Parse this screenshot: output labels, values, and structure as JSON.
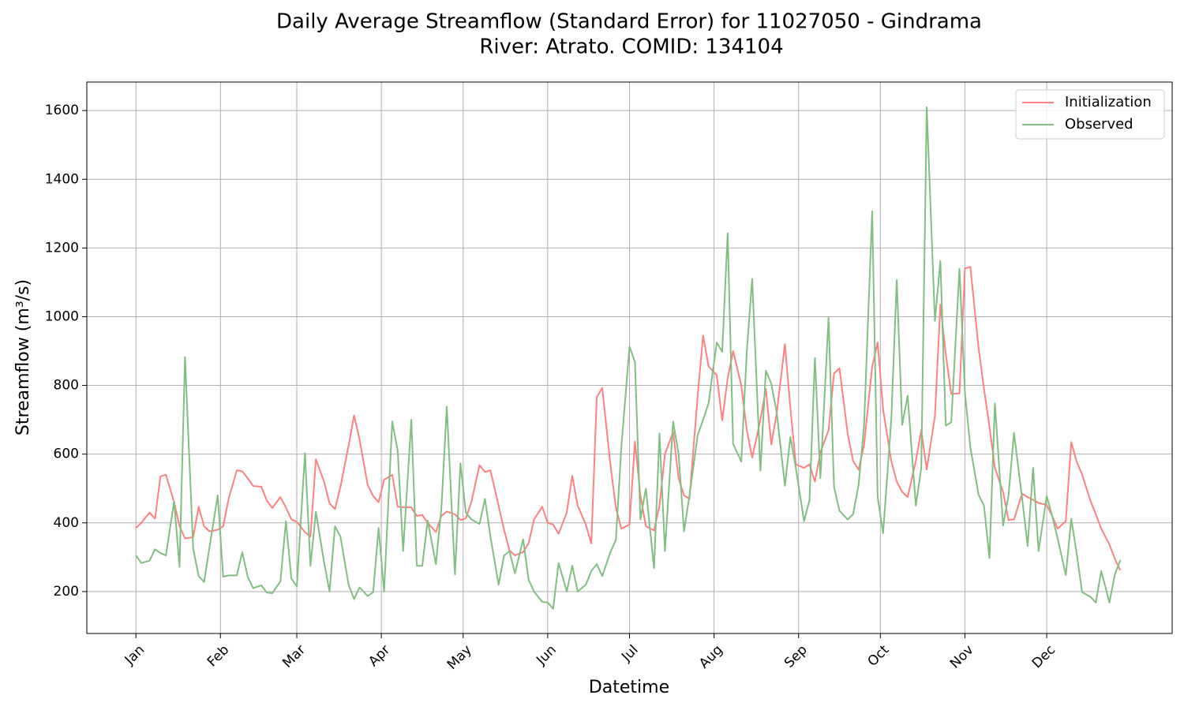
{
  "chart_data": {
    "type": "line",
    "title": [
      "Daily Average Streamflow (Standard Error) for 11027050 - Gindrama",
      "River: Atrato. COMID: 134104"
    ],
    "xlabel": "Datetime",
    "ylabel": "Streamflow (m³/s)",
    "x": [
      1,
      3,
      6,
      8,
      10,
      12,
      15,
      17,
      19,
      22,
      24,
      26,
      28,
      31,
      33,
      35,
      38,
      40,
      42,
      44,
      47,
      49,
      51,
      54,
      56,
      58,
      60,
      63,
      65,
      67,
      70,
      72,
      74,
      76,
      79,
      81,
      83,
      86,
      88,
      90,
      92,
      95,
      97,
      99,
      102,
      104,
      106,
      108,
      111,
      113,
      115,
      118,
      120,
      122,
      124,
      127,
      129,
      131,
      134,
      136,
      138,
      140,
      143,
      145,
      147,
      150,
      152,
      154,
      156,
      159,
      161,
      163,
      166,
      168,
      170,
      172,
      175,
      177,
      179,
      182,
      184,
      186,
      188,
      191,
      193,
      195,
      198,
      200,
      202,
      204,
      207,
      209,
      211,
      214,
      216,
      218,
      220,
      223,
      225,
      227,
      230,
      232,
      234,
      236,
      239,
      241,
      243,
      246,
      248,
      250,
      252,
      255,
      257,
      259,
      262,
      264,
      266,
      268,
      271,
      273,
      275,
      278,
      280,
      282,
      284,
      287,
      289,
      291,
      294,
      296,
      298,
      300,
      303,
      305,
      307,
      310,
      312,
      314,
      316,
      319,
      321,
      323,
      326,
      328,
      330,
      332,
      335,
      337,
      339,
      342,
      344,
      346,
      348,
      351,
      353,
      355,
      358,
      360,
      362
    ],
    "series": [
      {
        "name": "Initialization",
        "color": "#ff8080",
        "values": [
          385,
          400,
          430,
          412,
          535,
          540,
          460,
          390,
          355,
          358,
          447,
          390,
          375,
          380,
          390,
          470,
          553,
          550,
          530,
          507,
          505,
          465,
          443,
          475,
          445,
          410,
          403,
          373,
          360,
          585,
          520,
          457,
          440,
          505,
          625,
          713,
          643,
          510,
          478,
          460,
          525,
          540,
          447,
          445,
          445,
          420,
          423,
          400,
          373,
          420,
          433,
          425,
          408,
          413,
          460,
          568,
          548,
          553,
          450,
          380,
          320,
          305,
          315,
          340,
          410,
          447,
          400,
          395,
          368,
          430,
          537,
          450,
          395,
          340,
          765,
          793,
          570,
          445,
          383,
          395,
          637,
          480,
          390,
          378,
          450,
          600,
          665,
          530,
          480,
          470,
          770,
          945,
          855,
          830,
          698,
          820,
          900,
          800,
          670,
          590,
          700,
          790,
          628,
          720,
          920,
          735,
          570,
          560,
          570,
          520,
          605,
          670,
          835,
          850,
          660,
          580,
          555,
          625,
          855,
          925,
          730,
          580,
          520,
          490,
          475,
          580,
          670,
          555,
          710,
          1035,
          890,
          775,
          777,
          1140,
          1145,
          910,
          790,
          680,
          560,
          490,
          408,
          410,
          485,
          475,
          467,
          458,
          452,
          420,
          383,
          405,
          635,
          578,
          540,
          465,
          425,
          383,
          337,
          295,
          262
        ]
      },
      {
        "name": "Observed",
        "color": "#80bf80",
        "values": [
          305,
          283,
          290,
          323,
          312,
          305,
          462,
          272,
          883,
          325,
          245,
          228,
          330,
          480,
          243,
          247,
          247,
          315,
          243,
          210,
          218,
          197,
          195,
          230,
          405,
          238,
          215,
          603,
          275,
          432,
          285,
          200,
          390,
          360,
          220,
          178,
          212,
          187,
          198,
          385,
          200,
          695,
          610,
          318,
          700,
          275,
          275,
          407,
          280,
          440,
          738,
          250,
          573,
          430,
          410,
          397,
          470,
          360,
          220,
          305,
          318,
          253,
          352,
          235,
          200,
          170,
          168,
          150,
          283,
          200,
          275,
          200,
          220,
          260,
          280,
          245,
          315,
          350,
          620,
          913,
          868,
          410,
          500,
          268,
          660,
          318,
          695,
          600,
          375,
          480,
          655,
          700,
          748,
          925,
          898,
          1243,
          630,
          578,
          897,
          1110,
          552,
          843,
          805,
          720,
          508,
          650,
          560,
          405,
          465,
          880,
          530,
          997,
          505,
          435,
          410,
          425,
          510,
          680,
          1307,
          475,
          370,
          700,
          1107,
          685,
          770,
          450,
          560,
          1610,
          988,
          1162,
          683,
          693,
          1140,
          780,
          620,
          482,
          450,
          297,
          748,
          392,
          480,
          662,
          470,
          333,
          560,
          318,
          478,
          420,
          355,
          248,
          412,
          310,
          198,
          185,
          168,
          260,
          168,
          250,
          292
        ]
      }
    ],
    "xlim": [
      -17,
      381
    ],
    "xticks": [
      {
        "value": 1,
        "label": "Jan"
      },
      {
        "value": 32,
        "label": "Feb"
      },
      {
        "value": 60,
        "label": "Mar"
      },
      {
        "value": 91,
        "label": "Apr"
      },
      {
        "value": 121,
        "label": "May"
      },
      {
        "value": 152,
        "label": "Jun"
      },
      {
        "value": 182,
        "label": "Jul"
      },
      {
        "value": 213,
        "label": "Aug"
      },
      {
        "value": 244,
        "label": "Sep"
      },
      {
        "value": 274,
        "label": "Oct"
      },
      {
        "value": 305,
        "label": "Nov"
      },
      {
        "value": 335,
        "label": "Dec"
      }
    ],
    "ylim": [
      78,
      1683
    ],
    "yticks": [
      200,
      400,
      600,
      800,
      1000,
      1200,
      1400,
      1600
    ],
    "grid": true,
    "legend": "upper right"
  }
}
